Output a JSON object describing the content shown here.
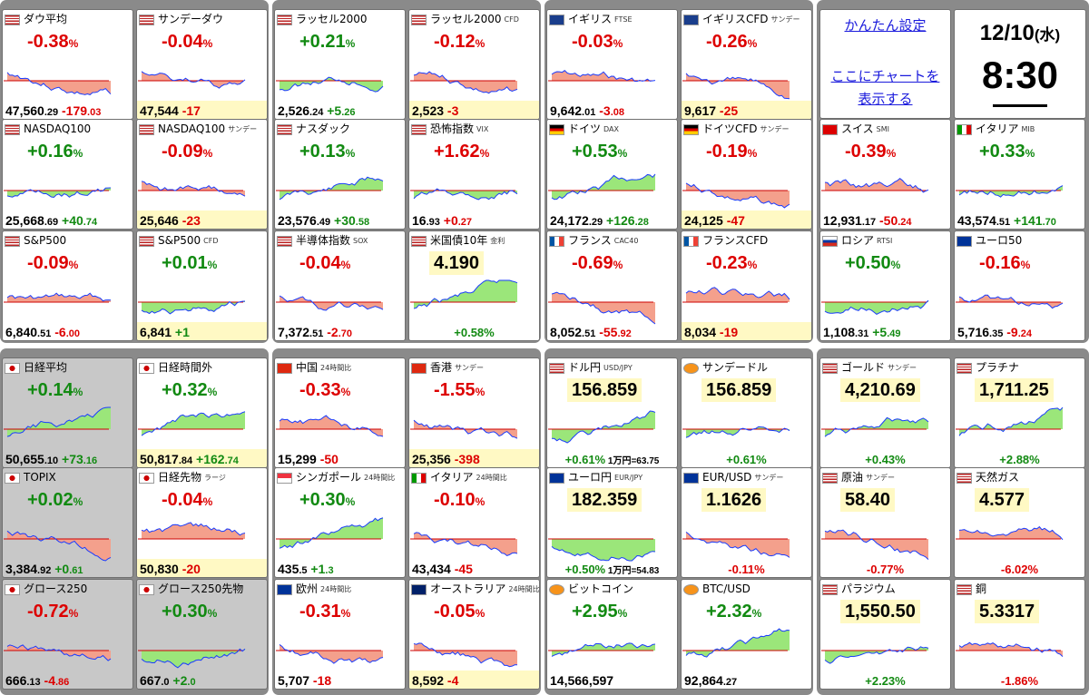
{
  "settings": {
    "quick_settings": "かんたん設定",
    "chart_here_1": "ここにチャートを",
    "chart_here_2": "表示する"
  },
  "clock": {
    "date": "12/10",
    "weekday": "(水)",
    "time": "8:30"
  },
  "tiles": [
    {
      "name": "ダウ平均",
      "sub": "",
      "flag": "us",
      "chg": "-0.38",
      "dir": "dn",
      "val": "47,560",
      "dec": ".29",
      "d": "-179",
      "dd": ".03",
      "trend": "dn"
    },
    {
      "name": "サンデーダウ",
      "sub": "",
      "flag": "us",
      "chg": "-0.04",
      "dir": "dn",
      "val": "47,544",
      "dec": "",
      "d": "-17",
      "dd": "",
      "trend": "dn",
      "yellow": true
    },
    {
      "name": "ラッセル2000",
      "sub": "",
      "flag": "us",
      "chg": "+0.21",
      "dir": "up",
      "val": "2,526",
      "dec": ".24",
      "d": "+5",
      "dd": ".26",
      "trend": "up"
    },
    {
      "name": "ラッセル2000",
      "sub": "CFD",
      "flag": "us",
      "chg": "-0.12",
      "dir": "dn",
      "val": "2,523",
      "dec": "",
      "d": "-3",
      "dd": "",
      "trend": "dn",
      "yellow": true
    },
    {
      "name": "イギリス",
      "sub": "FTSE",
      "flag": "uk",
      "chg": "-0.03",
      "dir": "dn",
      "val": "9,642",
      "dec": ".01",
      "d": "-3",
      "dd": ".08",
      "trend": "dn"
    },
    {
      "name": "イギリスCFD",
      "sub": "サンデー",
      "flag": "uk",
      "chg": "-0.26",
      "dir": "dn",
      "val": "9,617",
      "dec": "",
      "d": "-25",
      "dd": "",
      "trend": "dn",
      "yellow": true
    },
    {
      "name": "NASDAQ100",
      "sub": "",
      "flag": "us",
      "chg": "+0.16",
      "dir": "up",
      "val": "25,668",
      "dec": ".69",
      "d": "+40",
      "dd": ".74",
      "trend": "up"
    },
    {
      "name": "NASDAQ100",
      "sub": "サンデー",
      "flag": "us",
      "chg": "-0.09",
      "dir": "dn",
      "val": "25,646",
      "dec": "",
      "d": "-23",
      "dd": "",
      "trend": "dn",
      "yellow": true
    },
    {
      "name": "ナスダック",
      "sub": "",
      "flag": "us",
      "chg": "+0.13",
      "dir": "up",
      "val": "23,576",
      "dec": ".49",
      "d": "+30",
      "dd": ".58",
      "trend": "up"
    },
    {
      "name": "恐怖指数",
      "sub": "VIX",
      "flag": "us",
      "chg": "+1.62",
      "dir": "up",
      "chgcolor": "dn",
      "val": "16",
      "dec": ".93",
      "d": "+0",
      "dd": ".27",
      "ddir": "dn",
      "trend": "up"
    },
    {
      "name": "ドイツ",
      "sub": "DAX",
      "flag": "de",
      "chg": "+0.53",
      "dir": "up",
      "val": "24,172",
      "dec": ".29",
      "d": "+126",
      "dd": ".28",
      "trend": "up"
    },
    {
      "name": "ドイツCFD",
      "sub": "サンデー",
      "flag": "de",
      "chg": "-0.19",
      "dir": "dn",
      "val": "24,125",
      "dec": "",
      "d": "-47",
      "dd": "",
      "trend": "dn",
      "yellow": true
    },
    {
      "name": "スイス",
      "sub": "SMI",
      "flag": "ch",
      "chg": "-0.39",
      "dir": "dn",
      "val": "12,931",
      "dec": ".17",
      "d": "-50",
      "dd": ".24",
      "trend": "dn"
    },
    {
      "name": "イタリア",
      "sub": "MIB",
      "flag": "it",
      "chg": "+0.33",
      "dir": "up",
      "val": "43,574",
      "dec": ".51",
      "d": "+141",
      "dd": ".70",
      "trend": "up"
    },
    {
      "name": "S&P500",
      "sub": "",
      "flag": "us",
      "chg": "-0.09",
      "dir": "dn",
      "val": "6,840",
      "dec": ".51",
      "d": "-6",
      "dd": ".00",
      "trend": "dn"
    },
    {
      "name": "S&P500",
      "sub": "CFD",
      "flag": "us",
      "chg": "+0.01",
      "dir": "up",
      "val": "6,841",
      "dec": "",
      "d": "+1",
      "dd": "",
      "trend": "up",
      "yellow": true
    },
    {
      "name": "半導体指数",
      "sub": "SOX",
      "flag": "us",
      "chg": "-0.04",
      "dir": "dn",
      "val": "7,372",
      "dec": ".51",
      "d": "-2",
      "dd": ".70",
      "trend": "dn"
    },
    {
      "name": "米国債10年",
      "sub": "金利",
      "flag": "us",
      "chg": "4.190",
      "dir": "lvl",
      "val": "",
      "dec": "",
      "d": "+0.58%",
      "dd": "",
      "trend": "up",
      "fx": true
    },
    {
      "name": "フランス",
      "sub": "CAC40",
      "flag": "fr",
      "chg": "-0.69",
      "dir": "dn",
      "val": "8,052",
      "dec": ".51",
      "d": "-55",
      "dd": ".92",
      "trend": "dn"
    },
    {
      "name": "フランスCFD",
      "sub": "",
      "flag": "fr",
      "chg": "-0.23",
      "dir": "dn",
      "val": "8,034",
      "dec": "",
      "d": "-19",
      "dd": "",
      "trend": "dn",
      "yellow": true
    },
    {
      "name": "ロシア",
      "sub": "RTSI",
      "flag": "ru",
      "chg": "+0.50",
      "dir": "up",
      "val": "1,108",
      "dec": ".31",
      "d": "+5",
      "dd": ".49",
      "trend": "up"
    },
    {
      "name": "ユーロ50",
      "sub": "",
      "flag": "eu",
      "chg": "-0.16",
      "dir": "dn",
      "val": "5,716",
      "dec": ".35",
      "d": "-9",
      "dd": ".24",
      "trend": "dn"
    },
    {
      "name": "日経平均",
      "sub": "",
      "flag": "jp",
      "chg": "+0.14",
      "dir": "up",
      "val": "50,655",
      "dec": ".10",
      "d": "+73",
      "dd": ".16",
      "trend": "up",
      "gray": true
    },
    {
      "name": "日経時間外",
      "sub": "",
      "flag": "jp",
      "chg": "+0.32",
      "dir": "up",
      "val": "50,817",
      "dec": ".84",
      "d": "+162",
      "dd": ".74",
      "trend": "up",
      "yellow": true
    },
    {
      "name": "中国",
      "sub": "24時間比",
      "flag": "cn",
      "chg": "-0.33",
      "dir": "dn",
      "val": "15,299",
      "dec": "",
      "d": "-50",
      "dd": "",
      "trend": "dn"
    },
    {
      "name": "香港",
      "sub": "サンデー",
      "flag": "hk",
      "chg": "-1.55",
      "dir": "dn",
      "val": "25,356",
      "dec": "",
      "d": "-398",
      "dd": "",
      "trend": "dn",
      "yellow": true
    },
    {
      "name": "ドル円",
      "sub": "USD/JPY",
      "flag": "us",
      "chg": "156.859",
      "dir": "lvl",
      "val": "",
      "dec": "",
      "d": "+0.61%",
      "dd": "",
      "x": "1万円=63.75",
      "trend": "up",
      "fx": true
    },
    {
      "name": "サンデードル",
      "sub": "",
      "flag": "btc",
      "chg": "156.859",
      "dir": "lvl",
      "val": "",
      "dec": "",
      "d": "+0.61%",
      "dd": "",
      "trend": "up",
      "fx": true
    },
    {
      "name": "ゴールド",
      "sub": "サンデー",
      "flag": "us",
      "chg": "4,210.69",
      "dir": "lvl",
      "val": "",
      "dec": "",
      "d": "+0.43%",
      "dd": "",
      "trend": "up",
      "fx": true
    },
    {
      "name": "プラチナ",
      "sub": "",
      "flag": "us",
      "chg": "1,711.25",
      "dir": "lvl",
      "val": "",
      "dec": "",
      "d": "+2.88%",
      "dd": "",
      "trend": "up",
      "fx": true
    },
    {
      "name": "TOPIX",
      "sub": "",
      "flag": "jp",
      "chg": "+0.02",
      "dir": "up",
      "val": "3,384",
      "dec": ".92",
      "d": "+0",
      "dd": ".61",
      "trend": "dn",
      "gray": true
    },
    {
      "name": "日経先物",
      "sub": "ラージ",
      "flag": "jp",
      "chg": "-0.04",
      "dir": "dn",
      "val": "50,830",
      "dec": "",
      "d": "-20",
      "dd": "",
      "trend": "dn",
      "yellow": true
    },
    {
      "name": "シンガポール",
      "sub": "24時間比",
      "flag": "sg",
      "chg": "+0.30",
      "dir": "up",
      "val": "435",
      "dec": ".5",
      "d": "+1",
      "dd": ".3",
      "trend": "up"
    },
    {
      "name": "イタリア",
      "sub": "24時間比",
      "flag": "it",
      "chg": "-0.10",
      "dir": "dn",
      "val": "43,434",
      "dec": "",
      "d": "-45",
      "dd": "",
      "trend": "dn"
    },
    {
      "name": "ユーロ円",
      "sub": "EUR/JPY",
      "flag": "eu",
      "chg": "182.359",
      "dir": "lvl",
      "val": "",
      "dec": "",
      "d": "+0.50%",
      "dd": "",
      "x": "1万円=54.83",
      "trend": "up",
      "fx": true
    },
    {
      "name": "EUR/USD",
      "sub": "サンデー",
      "flag": "eu",
      "chg": "1.1626",
      "dir": "lvl",
      "val": "",
      "dec": "",
      "d": "-0.11%",
      "dd": "",
      "trend": "dn",
      "fx": true
    },
    {
      "name": "原油",
      "sub": "サンデー",
      "flag": "us",
      "chg": "58.40",
      "dir": "lvl",
      "val": "",
      "dec": "",
      "d": "-0.77%",
      "dd": "",
      "trend": "dn",
      "fx": true
    },
    {
      "name": "天然ガス",
      "sub": "",
      "flag": "us",
      "chg": "4.577",
      "dir": "lvl",
      "val": "",
      "dec": "",
      "d": "-6.02%",
      "dd": "",
      "trend": "dn",
      "fx": true
    },
    {
      "name": "グロース250",
      "sub": "",
      "flag": "jp",
      "chg": "-0.72",
      "dir": "dn",
      "val": "666",
      "dec": ".13",
      "d": "-4",
      "dd": ".86",
      "trend": "dn",
      "gray": true
    },
    {
      "name": "グロース250先物",
      "sub": "",
      "flag": "jp",
      "chg": "+0.30",
      "dir": "up",
      "val": "667",
      "dec": ".0",
      "d": "+2",
      "dd": ".0",
      "trend": "up",
      "gray": true
    },
    {
      "name": "欧州",
      "sub": "24時間比",
      "flag": "eu",
      "chg": "-0.31",
      "dir": "dn",
      "val": "5,707",
      "dec": "",
      "d": "-18",
      "dd": "",
      "trend": "dn"
    },
    {
      "name": "オーストラリア",
      "sub": "24時間比",
      "flag": "au",
      "chg": "-0.05",
      "dir": "dn",
      "val": "8,592",
      "dec": "",
      "d": "-4",
      "dd": "",
      "trend": "dn",
      "yellow": true
    },
    {
      "name": "ビットコイン",
      "sub": "",
      "flag": "btc",
      "chg": "+2.95",
      "dir": "up",
      "val": "14,566,597",
      "dec": "",
      "d": "",
      "dd": "",
      "trend": "up"
    },
    {
      "name": "BTC/USD",
      "sub": "",
      "flag": "btc",
      "chg": "+2.32",
      "dir": "up",
      "val": "92,864",
      "dec": ".27",
      "d": "",
      "dd": "",
      "trend": "up"
    },
    {
      "name": "パラジウム",
      "sub": "",
      "flag": "us",
      "chg": "1,550.50",
      "dir": "lvl",
      "val": "",
      "dec": "",
      "d": "+2.23%",
      "dd": "",
      "trend": "up",
      "fx": true
    },
    {
      "name": "銅",
      "sub": "",
      "flag": "us",
      "chg": "5.3317",
      "dir": "lvl",
      "val": "",
      "dec": "",
      "d": "-1.86%",
      "dd": "",
      "trend": "dn",
      "fx": true
    }
  ],
  "colors": {
    "up": "#128a12",
    "down": "#dd0000",
    "panel": "#8a8a8a",
    "yellow": "#fff9c4",
    "link": "#1a1adc"
  }
}
